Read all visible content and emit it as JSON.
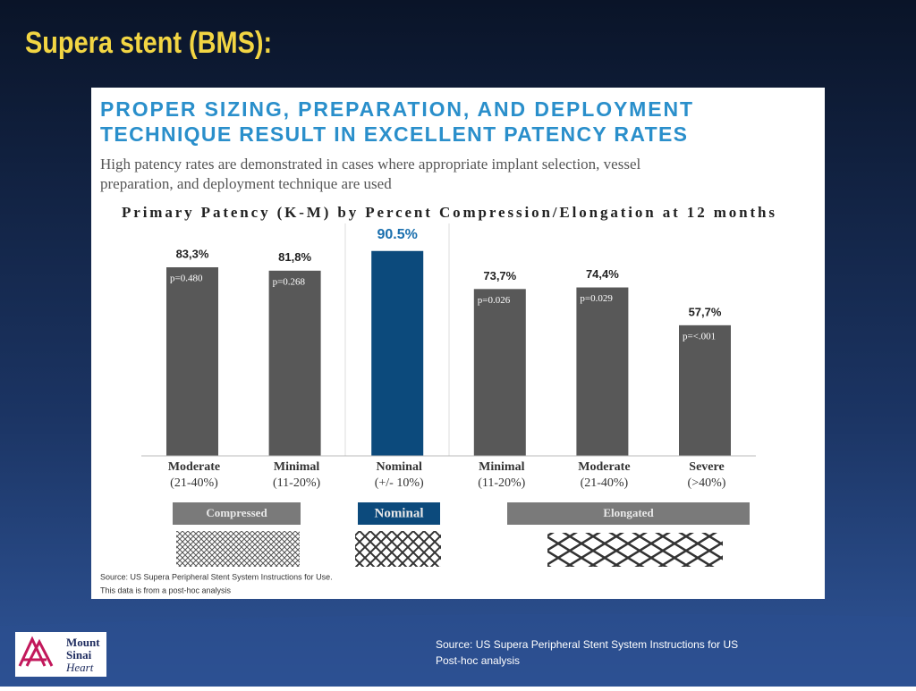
{
  "slide_title": "Supera stent (BMS):",
  "chart_data": {
    "type": "bar",
    "headline": [
      "PROPER SIZING, PREPARATION, AND DEPLOYMENT",
      "TECHNIQUE RESULT IN EXCELLENT PATENCY RATES"
    ],
    "subtitle": [
      "High patency rates are demonstrated in cases where appropriate implant selection, vessel",
      "preparation, and deployment technique are used"
    ],
    "title": "Primary Patency (K-M) by Percent Compression/Elongation at 12 months",
    "categories": [
      "Moderate",
      "Minimal",
      "Nominal",
      "Minimal",
      "Moderate",
      "Severe"
    ],
    "category_ranges": [
      "(21-40%)",
      "(11-20%)",
      "(+/- 10%)",
      "(11-20%)",
      "(21-40%)",
      "(>40%)"
    ],
    "values": [
      83.3,
      81.8,
      90.5,
      73.7,
      74.4,
      57.7
    ],
    "value_labels": [
      "83,3%",
      "81,8%",
      "90.5%",
      "73,7%",
      "74,4%",
      "57,7%"
    ],
    "p_labels": [
      "p=0.480",
      "p=0.268",
      null,
      "p=0.026",
      "p=0.029",
      "p=<.001"
    ],
    "colors": [
      "#585858",
      "#585858",
      "#0c4a7c",
      "#585858",
      "#585858",
      "#585858"
    ],
    "groups": [
      "Compressed",
      "Nominal",
      "Elongated"
    ],
    "notes": [
      "Source: US Supera Peripheral Stent System Instructions for Use.",
      "This data is from a post-hoc analysis"
    ]
  },
  "footer": {
    "source_lines": [
      "Source: US Supera Peripheral Stent System Instructions for US",
      "Post-hoc analysis"
    ],
    "logo_lines": [
      "Mount",
      "Sinai",
      "Heart"
    ]
  }
}
